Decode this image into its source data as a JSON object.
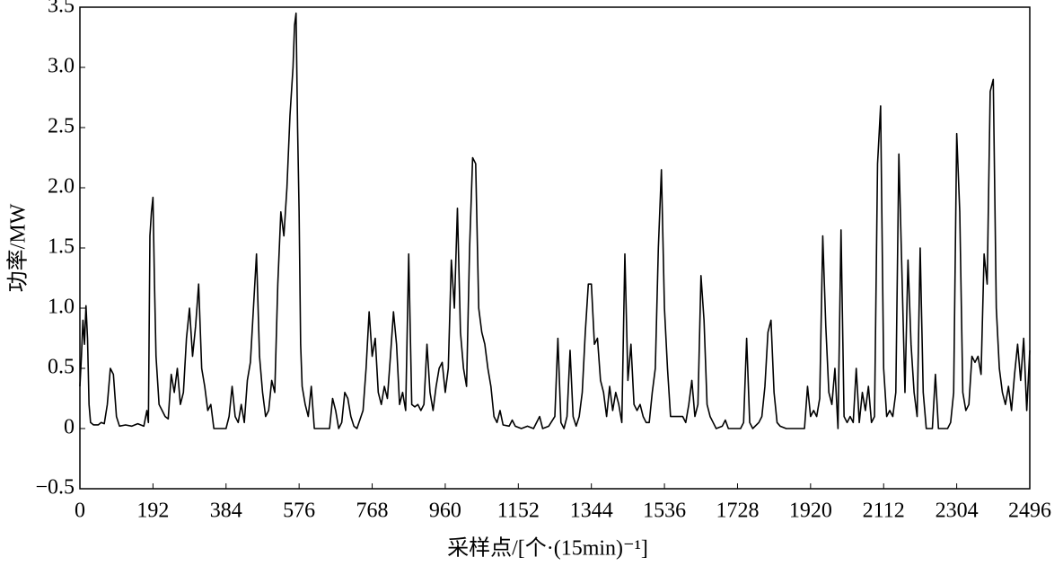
{
  "chart_data": {
    "type": "line",
    "xlabel": "采样点/[个·(15min)⁻¹]",
    "ylabel": "功率/MW",
    "xlim": [
      0,
      2496
    ],
    "ylim": [
      -0.5,
      3.5
    ],
    "xticks": [
      0,
      192,
      384,
      576,
      768,
      960,
      1152,
      1344,
      1536,
      1728,
      1920,
      2112,
      2304,
      2496
    ],
    "yticks": [
      {
        "value": -0.5,
        "label": "−0.5"
      },
      0,
      0.5,
      {
        "value": 1,
        "label": "1.0"
      },
      1.5,
      {
        "value": 2,
        "label": "2.0"
      },
      2.5,
      {
        "value": 3,
        "label": "3.0"
      },
      3.5
    ],
    "series": [
      {
        "color": "#000000",
        "x": [
          0,
          4,
          8,
          12,
          16,
          20,
          24,
          28,
          36,
          48,
          56,
          64,
          72,
          80,
          88,
          96,
          104,
          120,
          136,
          152,
          168,
          176,
          180,
          184,
          188,
          192,
          196,
          200,
          208,
          216,
          224,
          232,
          240,
          248,
          256,
          264,
          272,
          280,
          288,
          296,
          304,
          312,
          320,
          328,
          336,
          344,
          352,
          368,
          384,
          392,
          400,
          408,
          416,
          424,
          432,
          440,
          448,
          456,
          464,
          472,
          480,
          488,
          496,
          504,
          512,
          520,
          528,
          536,
          544,
          552,
          560,
          564,
          568,
          572,
          576,
          580,
          584,
          592,
          600,
          608,
          616,
          640,
          656,
          664,
          672,
          680,
          688,
          696,
          704,
          712,
          720,
          728,
          744,
          752,
          760,
          768,
          776,
          784,
          792,
          800,
          808,
          816,
          824,
          832,
          840,
          848,
          856,
          864,
          872,
          880,
          888,
          896,
          904,
          912,
          920,
          928,
          936,
          944,
          952,
          960,
          968,
          976,
          984,
          992,
          1000,
          1008,
          1016,
          1024,
          1032,
          1040,
          1048,
          1056,
          1064,
          1072,
          1080,
          1088,
          1096,
          1104,
          1112,
          1128,
          1136,
          1144,
          1160,
          1176,
          1192,
          1208,
          1216,
          1232,
          1248,
          1256,
          1264,
          1272,
          1280,
          1288,
          1296,
          1304,
          1312,
          1320,
          1328,
          1336,
          1344,
          1352,
          1360,
          1368,
          1376,
          1384,
          1392,
          1400,
          1408,
          1416,
          1424,
          1432,
          1440,
          1448,
          1456,
          1464,
          1472,
          1480,
          1488,
          1496,
          1504,
          1512,
          1520,
          1528,
          1536,
          1544,
          1552,
          1568,
          1584,
          1592,
          1600,
          1608,
          1616,
          1624,
          1632,
          1640,
          1648,
          1656,
          1664,
          1672,
          1688,
          1696,
          1704,
          1720,
          1736,
          1744,
          1752,
          1760,
          1768,
          1784,
          1792,
          1800,
          1808,
          1816,
          1824,
          1832,
          1840,
          1856,
          1872,
          1888,
          1904,
          1912,
          1920,
          1928,
          1936,
          1944,
          1952,
          1960,
          1968,
          1976,
          1984,
          1992,
          2000,
          2008,
          2016,
          2024,
          2032,
          2040,
          2048,
          2056,
          2064,
          2072,
          2080,
          2088,
          2096,
          2104,
          2112,
          2120,
          2128,
          2136,
          2144,
          2152,
          2160,
          2168,
          2176,
          2184,
          2192,
          2200,
          2208,
          2216,
          2224,
          2240,
          2248,
          2256,
          2264,
          2280,
          2288,
          2296,
          2304,
          2312,
          2320,
          2328,
          2336,
          2344,
          2352,
          2360,
          2368,
          2376,
          2384,
          2392,
          2400,
          2408,
          2416,
          2424,
          2432,
          2440,
          2448,
          2456,
          2464,
          2472,
          2480,
          2488,
          2496
        ],
        "values": [
          0.35,
          0.6,
          0.9,
          0.7,
          1.02,
          0.75,
          0.2,
          0.05,
          0.03,
          0.03,
          0.05,
          0.04,
          0.2,
          0.5,
          0.45,
          0.1,
          0.02,
          0.03,
          0.02,
          0.04,
          0.02,
          0.15,
          0.05,
          1.6,
          1.8,
          1.92,
          1.2,
          0.6,
          0.2,
          0.15,
          0.1,
          0.08,
          0.45,
          0.3,
          0.5,
          0.2,
          0.3,
          0.75,
          1.0,
          0.6,
          0.85,
          1.2,
          0.5,
          0.35,
          0.15,
          0.2,
          0.0,
          0.0,
          0.0,
          0.1,
          0.35,
          0.1,
          0.05,
          0.2,
          0.05,
          0.4,
          0.55,
          1.0,
          1.45,
          0.6,
          0.3,
          0.1,
          0.15,
          0.4,
          0.3,
          1.2,
          1.8,
          1.6,
          2.0,
          2.6,
          3.0,
          3.35,
          3.45,
          2.5,
          1.8,
          0.7,
          0.35,
          0.2,
          0.1,
          0.35,
          0.0,
          0.0,
          0.0,
          0.25,
          0.15,
          0.0,
          0.05,
          0.3,
          0.25,
          0.1,
          0.02,
          0.0,
          0.15,
          0.5,
          0.97,
          0.6,
          0.75,
          0.3,
          0.2,
          0.35,
          0.25,
          0.6,
          0.97,
          0.7,
          0.2,
          0.3,
          0.15,
          1.45,
          0.2,
          0.18,
          0.2,
          0.15,
          0.2,
          0.7,
          0.3,
          0.15,
          0.35,
          0.5,
          0.55,
          0.3,
          0.5,
          1.4,
          1.0,
          1.83,
          0.8,
          0.5,
          0.35,
          1.5,
          2.25,
          2.2,
          1.0,
          0.8,
          0.7,
          0.5,
          0.35,
          0.1,
          0.05,
          0.15,
          0.03,
          0.02,
          0.07,
          0.02,
          0.0,
          0.02,
          0.0,
          0.1,
          0.0,
          0.02,
          0.1,
          0.75,
          0.05,
          0.0,
          0.1,
          0.65,
          0.1,
          0.02,
          0.1,
          0.3,
          0.8,
          1.2,
          1.2,
          0.7,
          0.75,
          0.4,
          0.3,
          0.1,
          0.35,
          0.15,
          0.3,
          0.2,
          0.05,
          1.45,
          0.4,
          0.7,
          0.2,
          0.15,
          0.2,
          0.1,
          0.05,
          0.05,
          0.3,
          0.5,
          1.5,
          2.15,
          1.0,
          0.5,
          0.1,
          0.1,
          0.1,
          0.05,
          0.2,
          0.4,
          0.1,
          0.2,
          1.27,
          0.9,
          0.2,
          0.1,
          0.05,
          0.0,
          0.02,
          0.07,
          0.0,
          0.0,
          0.0,
          0.05,
          0.75,
          0.05,
          0.0,
          0.05,
          0.1,
          0.35,
          0.8,
          0.9,
          0.3,
          0.05,
          0.02,
          0.0,
          0.0,
          0.0,
          0.0,
          0.35,
          0.1,
          0.15,
          0.1,
          0.25,
          1.6,
          0.85,
          0.3,
          0.2,
          0.5,
          0.0,
          1.65,
          0.1,
          0.05,
          0.1,
          0.05,
          0.5,
          0.05,
          0.3,
          0.15,
          0.35,
          0.05,
          0.1,
          2.2,
          2.68,
          0.5,
          0.1,
          0.15,
          0.1,
          0.3,
          2.28,
          1.3,
          0.3,
          1.4,
          0.7,
          0.3,
          0.1,
          1.5,
          0.3,
          0.0,
          0.0,
          0.45,
          0.0,
          0.0,
          0.0,
          0.05,
          0.3,
          2.45,
          1.8,
          0.3,
          0.15,
          0.2,
          0.6,
          0.55,
          0.6,
          0.45,
          1.45,
          1.2,
          2.8,
          2.9,
          1.0,
          0.5,
          0.3,
          0.2,
          0.35,
          0.15,
          0.45,
          0.7,
          0.4,
          0.75,
          0.15,
          0.65
        ]
      }
    ]
  }
}
